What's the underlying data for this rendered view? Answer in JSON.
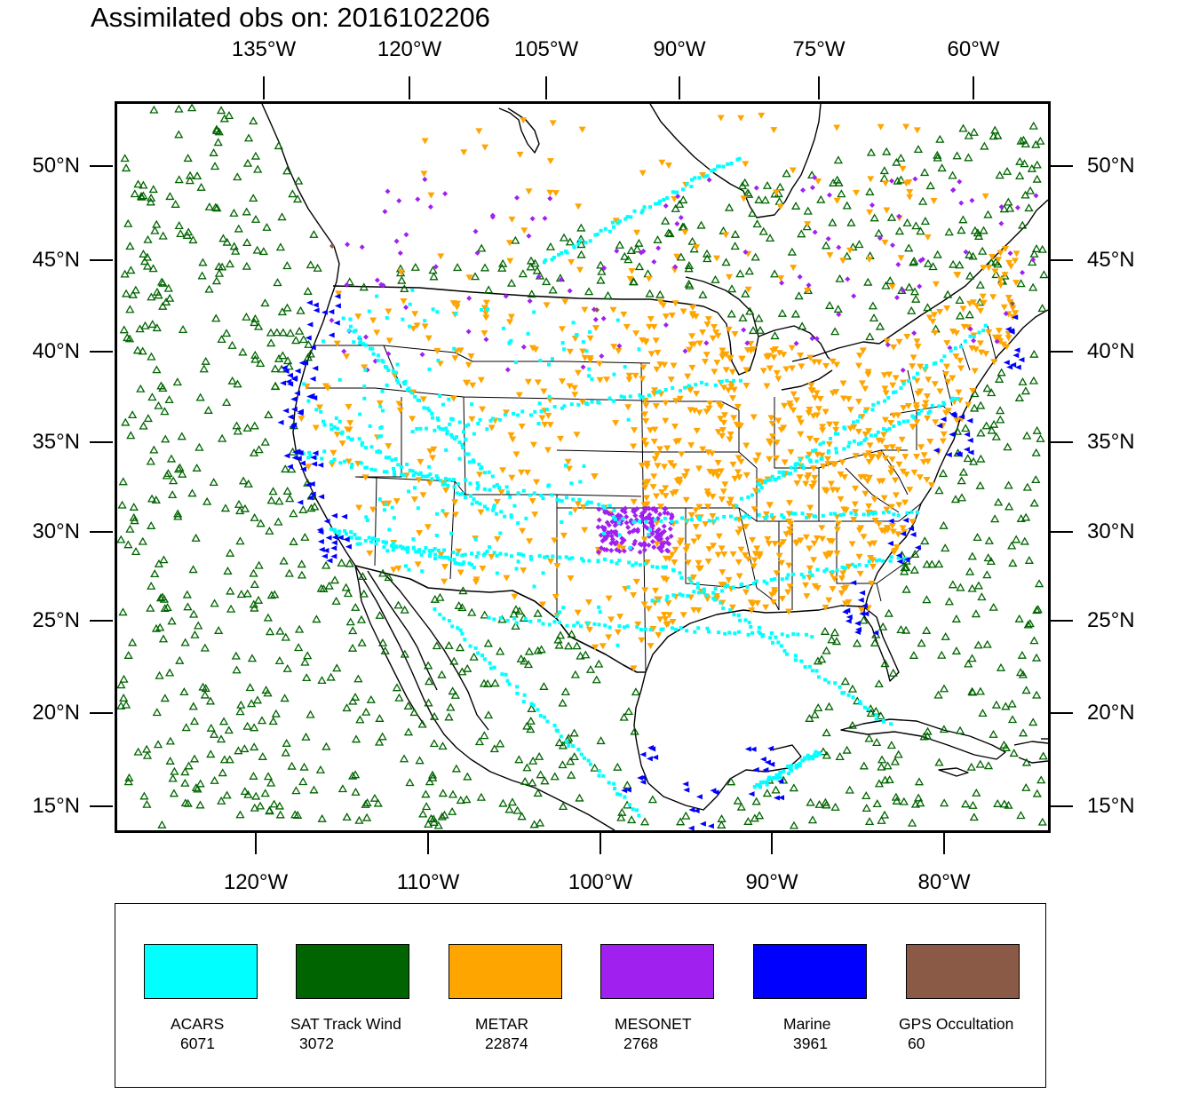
{
  "title": "Assimilated obs on: 2016102206",
  "top_axis": [
    "135°W",
    "120°W",
    "105°W",
    "90°W",
    "75°W",
    "60°W"
  ],
  "bottom_axis": [
    "120°W",
    "110°W",
    "100°W",
    "90°W",
    "80°W"
  ],
  "left_axis": [
    "50°N",
    "45°N",
    "40°N",
    "35°N",
    "30°N",
    "25°N",
    "20°N",
    "15°N"
  ],
  "right_axis": [
    "50°N",
    "45°N",
    "40°N",
    "35°N",
    "30°N",
    "25°N",
    "20°N",
    "15°N"
  ],
  "colors": {
    "acars": "#00ffff",
    "sat_track_wind": "#006400",
    "metar": "#ffa500",
    "mesonet": "#a020f0",
    "marine": "#0000ff",
    "gps_occultation": "#8b5a46"
  },
  "legend": [
    {
      "name": "ACARS",
      "count": "6071",
      "color": "#00ffff",
      "symbol": "dot"
    },
    {
      "name": "SAT Track Wind",
      "count": "3072",
      "color": "#006400",
      "symbol": "triangle-up"
    },
    {
      "name": "METAR",
      "count": "22874",
      "color": "#ffa500",
      "symbol": "triangle-down"
    },
    {
      "name": "MESONET",
      "count": "2768",
      "color": "#a020f0",
      "symbol": "diamond"
    },
    {
      "name": "Marine",
      "count": "3961",
      "color": "#0000ff",
      "symbol": "triangle-left"
    },
    {
      "name": "GPS Occultation",
      "count": "60",
      "color": "#8b5a46",
      "symbol": "square"
    }
  ]
}
